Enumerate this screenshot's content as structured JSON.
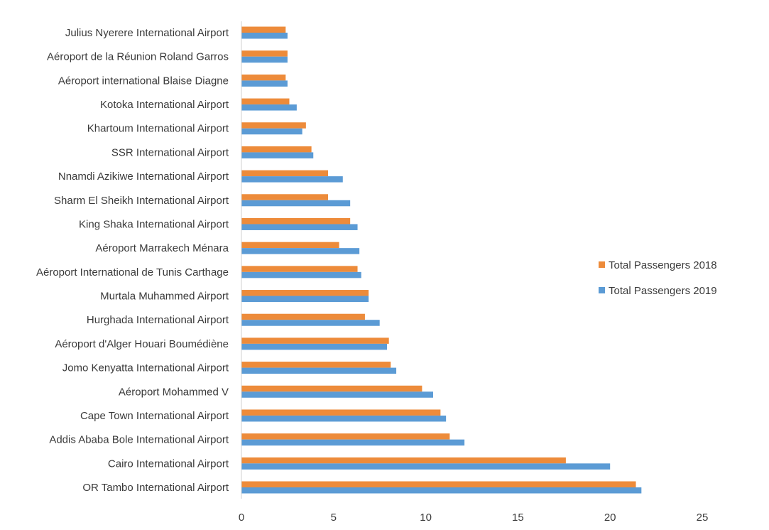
{
  "chart_data": {
    "type": "bar",
    "orientation": "horizontal",
    "title": "",
    "xlabel": "",
    "ylabel": "",
    "xlim": [
      0,
      25
    ],
    "xticks": [
      0,
      5,
      10,
      15,
      20,
      25
    ],
    "grid": false,
    "legend_position": "right",
    "categories": [
      "Julius Nyerere International Airport",
      "Aéroport de la Réunion Roland Garros",
      "Aéroport international Blaise Diagne",
      "Kotoka International Airport",
      "Khartoum International Airport",
      "SSR International Airport",
      "Nnamdi Azikiwe International Airport",
      "Sharm El Sheikh International Airport",
      "King Shaka International Airport",
      "Aéroport Marrakech Ménara",
      "Aéroport International de Tunis Carthage",
      "Murtala Muhammed Airport",
      "Hurghada International Airport",
      "Aéroport d'Alger Houari Boumédiène",
      "Jomo Kenyatta International Airport",
      "Aéroport Mohammed V",
      "Cape Town International Airport",
      "Addis Ababa Bole International Airport",
      "Cairo International Airport",
      "OR Tambo International Airport"
    ],
    "series": [
      {
        "name": "Total Passengers 2018",
        "color": "#ED8B3A",
        "values": [
          2.4,
          2.5,
          2.4,
          2.6,
          3.5,
          3.8,
          4.7,
          4.7,
          5.9,
          5.3,
          6.3,
          6.9,
          6.7,
          8.0,
          8.1,
          9.8,
          10.8,
          11.3,
          17.6,
          21.4
        ]
      },
      {
        "name": "Total Passengers 2019",
        "color": "#5B9BD5",
        "values": [
          2.5,
          2.5,
          2.5,
          3.0,
          3.3,
          3.9,
          5.5,
          5.9,
          6.3,
          6.4,
          6.5,
          6.9,
          7.5,
          7.9,
          8.4,
          10.4,
          11.1,
          12.1,
          20.0,
          21.7
        ]
      }
    ]
  }
}
